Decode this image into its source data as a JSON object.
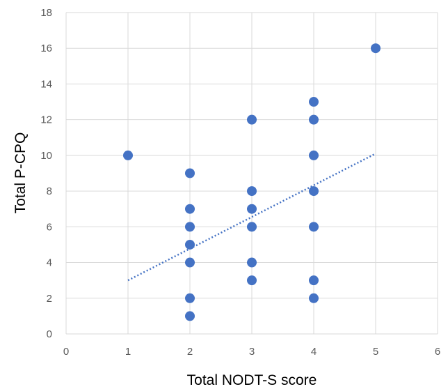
{
  "chart_data": {
    "type": "scatter",
    "title": "",
    "xlabel": "Total NODT-S score",
    "ylabel": "Total P-CPQ",
    "xlim": [
      0,
      6
    ],
    "ylim": [
      0,
      18
    ],
    "xticks": [
      "0",
      "1",
      "2",
      "3",
      "4",
      "5",
      "6"
    ],
    "yticks": [
      "0",
      "2",
      "4",
      "6",
      "8",
      "10",
      "12",
      "14",
      "16",
      "18"
    ],
    "grid": true,
    "legend": "none",
    "marker_color": "#4472C4",
    "trendline": {
      "type": "linear",
      "style": "dotted",
      "color": "#4472C4",
      "x": [
        1,
        5
      ],
      "y": [
        3.0,
        10.1
      ]
    },
    "series": [
      {
        "points": [
          [
            1,
            10
          ],
          [
            2,
            9
          ],
          [
            2,
            7
          ],
          [
            2,
            6
          ],
          [
            2,
            5
          ],
          [
            2,
            4
          ],
          [
            2,
            2
          ],
          [
            2,
            1
          ],
          [
            3,
            12
          ],
          [
            3,
            8
          ],
          [
            3,
            7
          ],
          [
            3,
            6
          ],
          [
            3,
            4
          ],
          [
            3,
            3
          ],
          [
            4,
            13
          ],
          [
            4,
            12
          ],
          [
            4,
            10
          ],
          [
            4,
            8
          ],
          [
            4,
            6
          ],
          [
            4,
            3
          ],
          [
            4,
            2
          ],
          [
            5,
            16
          ]
        ]
      }
    ]
  }
}
